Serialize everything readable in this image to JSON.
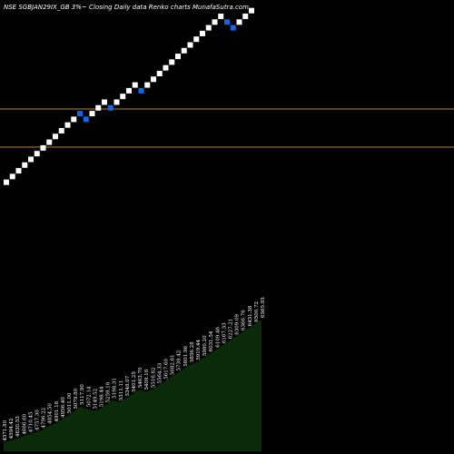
{
  "header": {
    "title": "NSE SGBJAN29IX_GB 3%~  Closing Daily data  Renko  charts MunafaSutra.com"
  },
  "colors": {
    "background": "#000000",
    "up_brick": "#ffffff",
    "down_brick": "#1565e8",
    "reference_line": "#b8860b",
    "volume_fill": "#0a2a0a"
  },
  "chart_data": {
    "type": "renko",
    "reference_lines": 2,
    "bricks": [
      {
        "n": 1,
        "dir": "up"
      },
      {
        "n": 2,
        "dir": "up"
      },
      {
        "n": 3,
        "dir": "up"
      },
      {
        "n": 4,
        "dir": "up"
      },
      {
        "n": 5,
        "dir": "up"
      },
      {
        "n": 6,
        "dir": "up"
      },
      {
        "n": 7,
        "dir": "up"
      },
      {
        "n": 8,
        "dir": "up"
      },
      {
        "n": 9,
        "dir": "up"
      },
      {
        "n": 10,
        "dir": "up"
      },
      {
        "n": 11,
        "dir": "up"
      },
      {
        "n": 12,
        "dir": "up"
      },
      {
        "n": 13,
        "dir": "down"
      },
      {
        "n": 12,
        "dir": "down"
      },
      {
        "n": 13,
        "dir": "up"
      },
      {
        "n": 14,
        "dir": "up"
      },
      {
        "n": 15,
        "dir": "up"
      },
      {
        "n": 14,
        "dir": "down"
      },
      {
        "n": 15,
        "dir": "up"
      },
      {
        "n": 16,
        "dir": "up"
      },
      {
        "n": 17,
        "dir": "up"
      },
      {
        "n": 18,
        "dir": "up"
      },
      {
        "n": 17,
        "dir": "down"
      },
      {
        "n": 18,
        "dir": "up"
      },
      {
        "n": 19,
        "dir": "up"
      },
      {
        "n": 20,
        "dir": "up"
      },
      {
        "n": 21,
        "dir": "up"
      },
      {
        "n": 22,
        "dir": "up"
      },
      {
        "n": 23,
        "dir": "up"
      },
      {
        "n": 24,
        "dir": "up"
      },
      {
        "n": 25,
        "dir": "up"
      },
      {
        "n": 26,
        "dir": "up"
      },
      {
        "n": 27,
        "dir": "up"
      },
      {
        "n": 28,
        "dir": "up"
      },
      {
        "n": 29,
        "dir": "up"
      },
      {
        "n": 30,
        "dir": "up"
      },
      {
        "n": 29,
        "dir": "down"
      },
      {
        "n": 28,
        "dir": "down"
      },
      {
        "n": 29,
        "dir": "up"
      },
      {
        "n": 30,
        "dir": "up"
      },
      {
        "n": 31,
        "dir": "up"
      }
    ],
    "volume_levels": [
      4,
      5,
      6,
      7,
      8,
      9,
      10,
      12,
      13,
      15,
      17,
      19,
      21,
      20,
      19,
      20,
      22,
      24,
      23,
      25,
      27,
      29,
      28,
      29,
      31,
      33,
      35,
      37,
      39,
      41,
      42,
      44,
      46,
      48,
      50,
      52,
      54,
      56,
      58,
      60,
      62
    ],
    "brick_labels": [
      "4571.80",
      "4594.42",
      "4630.53",
      "4666.60",
      "4710.45",
      "4757.30",
      "4796.22",
      "4854.50",
      "4901.18",
      "4956.40",
      "5011.00",
      "5079.80",
      "5117.90",
      "5072.14",
      "5149.52",
      "5198.44",
      "5259.18",
      "5198.31",
      "5311.11",
      "5348.07",
      "5401.25",
      "5463.70",
      "5409.18",
      "5516.82",
      "5564.33",
      "5617.60",
      "5682.61",
      "5739.42",
      "5801.96",
      "5856.28",
      "5919.44",
      "5980.20",
      "6031.54",
      "6109.46",
      "6167.33",
      "6227.21",
      "6309.09",
      "6366.76",
      "6431.38",
      "6500.72",
      "6565.93"
    ]
  }
}
